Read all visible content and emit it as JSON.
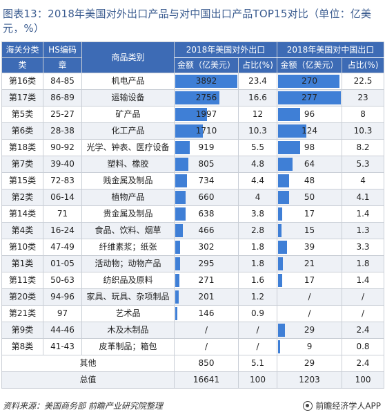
{
  "title": "图表13：2018年美国对外出口产品与对中国出口产品TOP15对比（单位：亿美元，%）",
  "header": {
    "col_category_top": "海关分类",
    "col_category_bottom": "类",
    "col_hs_top": "HS编码",
    "col_hs_bottom": "章",
    "col_product": "商品类别",
    "group_us_export": "2018年美国对外出口",
    "group_us_to_china": "2018年美国对中国出口",
    "amount_label": "金额（亿美元）",
    "share_label": "占比(%)"
  },
  "rows": [
    {
      "cat": "第16类",
      "hs": "84-85",
      "name": "机电产品",
      "us_amt": "3892",
      "us_pct": "23.4",
      "cn_amt": "270",
      "cn_pct": "22.5"
    },
    {
      "cat": "第17类",
      "hs": "86-89",
      "name": "运输设备",
      "us_amt": "2756",
      "us_pct": "16.6",
      "cn_amt": "277",
      "cn_pct": "23"
    },
    {
      "cat": "第5类",
      "hs": "25-27",
      "name": "矿产品",
      "us_amt": "1997",
      "us_pct": "12",
      "cn_amt": "96",
      "cn_pct": "8"
    },
    {
      "cat": "第6类",
      "hs": "28-38",
      "name": "化工产品",
      "us_amt": "1710",
      "us_pct": "10.3",
      "cn_amt": "124",
      "cn_pct": "10.3"
    },
    {
      "cat": "第18类",
      "hs": "90-92",
      "name": "光学、钟表、医疗设备",
      "us_amt": "919",
      "us_pct": "5.5",
      "cn_amt": "98",
      "cn_pct": "8.2"
    },
    {
      "cat": "第7类",
      "hs": "39-40",
      "name": "塑料、橡胶",
      "us_amt": "805",
      "us_pct": "4.8",
      "cn_amt": "64",
      "cn_pct": "5.3"
    },
    {
      "cat": "第15类",
      "hs": "72-83",
      "name": "贱金属及制品",
      "us_amt": "734",
      "us_pct": "4.4",
      "cn_amt": "48",
      "cn_pct": "4"
    },
    {
      "cat": "第2类",
      "hs": "06-14",
      "name": "植物产品",
      "us_amt": "660",
      "us_pct": "4",
      "cn_amt": "50",
      "cn_pct": "4.1"
    },
    {
      "cat": "第14类",
      "hs": "71",
      "name": "贵金属及制品",
      "us_amt": "638",
      "us_pct": "3.8",
      "cn_amt": "17",
      "cn_pct": "1.4"
    },
    {
      "cat": "第4类",
      "hs": "16-24",
      "name": "食品、饮料、烟草",
      "us_amt": "466",
      "us_pct": "2.8",
      "cn_amt": "15",
      "cn_pct": "1.3"
    },
    {
      "cat": "第10类",
      "hs": "47-49",
      "name": "纤维素浆；纸张",
      "us_amt": "302",
      "us_pct": "1.8",
      "cn_amt": "39",
      "cn_pct": "3.3"
    },
    {
      "cat": "第1类",
      "hs": "01-05",
      "name": "活动物；动物产品",
      "us_amt": "295",
      "us_pct": "1.8",
      "cn_amt": "21",
      "cn_pct": "1.8"
    },
    {
      "cat": "第11类",
      "hs": "50-63",
      "name": "纺织品及原料",
      "us_amt": "271",
      "us_pct": "1.6",
      "cn_amt": "17",
      "cn_pct": "1.4"
    },
    {
      "cat": "第20类",
      "hs": "94-96",
      "name": "家具、玩具、杂项制品",
      "us_amt": "201",
      "us_pct": "1.2",
      "cn_amt": "/",
      "cn_pct": "/"
    },
    {
      "cat": "第21类",
      "hs": "97",
      "name": "艺术品",
      "us_amt": "146",
      "us_pct": "0.9",
      "cn_amt": "/",
      "cn_pct": "/"
    },
    {
      "cat": "第9类",
      "hs": "44-46",
      "name": "木及木制品",
      "us_amt": "/",
      "us_pct": "/",
      "cn_amt": "29",
      "cn_pct": "2.4"
    },
    {
      "cat": "第8类",
      "hs": "41-43",
      "name": "皮革制品；箱包",
      "us_amt": "/",
      "us_pct": "/",
      "cn_amt": "9",
      "cn_pct": "0.8"
    }
  ],
  "summary": [
    {
      "label": "其他",
      "us_amt": "850",
      "us_pct": "5.1",
      "cn_amt": "29",
      "cn_pct": "2.4"
    },
    {
      "label": "总值",
      "us_amt": "16641",
      "us_pct": "100",
      "cn_amt": "1203",
      "cn_pct": "100"
    }
  ],
  "scales": {
    "us_max": 3892,
    "cn_max": 277
  },
  "colors": {
    "header": "#3d6bb5",
    "bar": "#3f7fd6",
    "title": "#3a5b8f"
  },
  "footer": {
    "source": "资料来源：美国商务部 前瞻产业研究院整理",
    "brand": "前瞻经济学人APP",
    "brand_icon": "brand-logo-icon"
  }
}
